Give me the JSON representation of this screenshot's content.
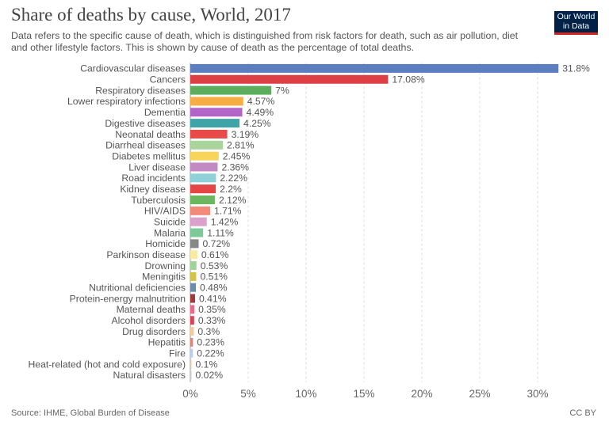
{
  "header": {
    "title": "Share of deaths by cause, World, 2017",
    "subtitle": "Data refers to the specific cause of death, which is distinguished from risk factors for death, such as air pollution, diet and other lifestyle factors. This is shown by cause of death as the percentage of total deaths.",
    "logo_line1": "Our World",
    "logo_line2": "in Data"
  },
  "footer": {
    "source": "Source: IHME, Global Burden of Disease",
    "license": "CC BY"
  },
  "chart_data": {
    "type": "bar",
    "orientation": "horizontal",
    "title": "Share of deaths by cause, World, 2017",
    "xlim": [
      0,
      32
    ],
    "xticks": [
      "0%",
      "5%",
      "10%",
      "15%",
      "20%",
      "25%",
      "30%"
    ],
    "grid": "vertical dashed",
    "categories": [
      "Cardiovascular diseases",
      "Cancers",
      "Respiratory diseases",
      "Lower respiratory infections",
      "Dementia",
      "Digestive diseases",
      "Neonatal deaths",
      "Diarrheal diseases",
      "Diabetes mellitus",
      "Liver disease",
      "Road incidents",
      "Kidney disease",
      "Tuberculosis",
      "HIV/AIDS",
      "Suicide",
      "Malaria",
      "Homicide",
      "Parkinson disease",
      "Drowning",
      "Meningitis",
      "Nutritional deficiencies",
      "Protein-energy malnutrition",
      "Maternal deaths",
      "Alcohol disorders",
      "Drug disorders",
      "Hepatitis",
      "Fire",
      "Heat-related (hot and cold exposure)",
      "Natural disasters"
    ],
    "values": [
      31.8,
      17.08,
      7,
      4.57,
      4.49,
      4.25,
      3.19,
      2.81,
      2.45,
      2.36,
      2.22,
      2.2,
      2.12,
      1.71,
      1.42,
      1.11,
      0.72,
      0.61,
      0.53,
      0.51,
      0.48,
      0.41,
      0.35,
      0.33,
      0.3,
      0.23,
      0.22,
      0.1,
      0.02
    ],
    "labels": [
      "31.8%",
      "17.08%",
      "7%",
      "4.57%",
      "4.49%",
      "4.25%",
      "3.19%",
      "2.81%",
      "2.45%",
      "2.36%",
      "2.22%",
      "2.2%",
      "2.12%",
      "1.71%",
      "1.42%",
      "1.11%",
      "0.72%",
      "0.61%",
      "0.53%",
      "0.51%",
      "0.48%",
      "0.41%",
      "0.35%",
      "0.33%",
      "0.3%",
      "0.23%",
      "0.22%",
      "0.1%",
      "0.02%"
    ],
    "colors": [
      "#5b7ec0",
      "#dc3f44",
      "#5aae5c",
      "#f6ae44",
      "#b463c7",
      "#3fa4a7",
      "#e84a4a",
      "#a9d49a",
      "#f7d55a",
      "#c28ac3",
      "#8fd1d7",
      "#e64545",
      "#6ab85d",
      "#f28a7a",
      "#dca0cc",
      "#7cc99a",
      "#888888",
      "#f7eba0",
      "#9fd39a",
      "#d1c24a",
      "#6b8cae",
      "#9e3a3a",
      "#e86a86",
      "#d9435a",
      "#f5c99a",
      "#d88a7a",
      "#bccfe8",
      "#e8c8a8",
      "#cccccc"
    ]
  }
}
